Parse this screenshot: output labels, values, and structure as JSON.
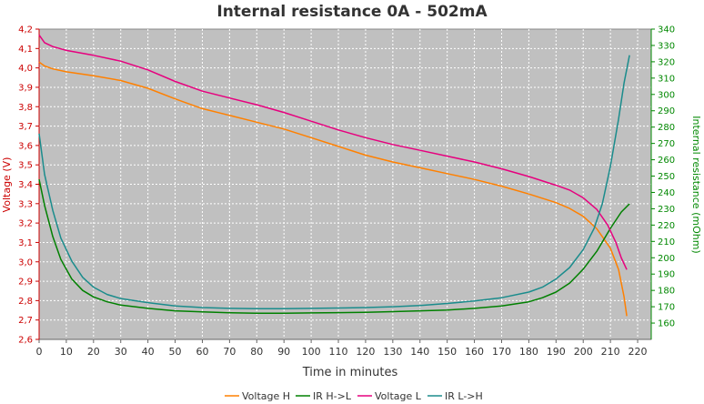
{
  "chart_data": {
    "type": "line",
    "title": "Internal resistance  0A - 502mA",
    "xlabel": "Time in minutes",
    "ylabel_left": "Voltage (V)",
    "ylabel_right": "Internal resistance (mOhm)",
    "xlim": [
      0,
      225
    ],
    "ylim_left": [
      2.6,
      4.2
    ],
    "ylim_right": [
      150,
      340
    ],
    "grid": true,
    "legend_position": "bottom",
    "x_ticks": [
      "0",
      "10",
      "20",
      "30",
      "40",
      "50",
      "60",
      "70",
      "80",
      "90",
      "100",
      "110",
      "120",
      "130",
      "140",
      "150",
      "160",
      "170",
      "180",
      "190",
      "200",
      "210",
      "220"
    ],
    "y_left_ticks": [
      "2,6",
      "2,7",
      "2,8",
      "2,9",
      "3,0",
      "3,1",
      "3,2",
      "3,3",
      "3,4",
      "3,5",
      "3,6",
      "3,7",
      "3,8",
      "3,9",
      "4,0",
      "4,1",
      "4,2"
    ],
    "y_right_ticks": [
      "160",
      "170",
      "180",
      "190",
      "200",
      "210",
      "220",
      "230",
      "240",
      "250",
      "260",
      "270",
      "280",
      "290",
      "300",
      "310",
      "320",
      "330",
      "340"
    ],
    "series": [
      {
        "name": "Voltage H",
        "axis": "left",
        "color": "#ff8000",
        "points": [
          [
            0,
            4.03
          ],
          [
            2,
            4.01
          ],
          [
            5,
            3.995
          ],
          [
            10,
            3.98
          ],
          [
            20,
            3.96
          ],
          [
            30,
            3.935
          ],
          [
            40,
            3.895
          ],
          [
            50,
            3.84
          ],
          [
            60,
            3.79
          ],
          [
            70,
            3.755
          ],
          [
            80,
            3.72
          ],
          [
            90,
            3.685
          ],
          [
            100,
            3.64
          ],
          [
            110,
            3.595
          ],
          [
            120,
            3.55
          ],
          [
            130,
            3.515
          ],
          [
            140,
            3.485
          ],
          [
            150,
            3.455
          ],
          [
            160,
            3.425
          ],
          [
            170,
            3.39
          ],
          [
            180,
            3.35
          ],
          [
            190,
            3.305
          ],
          [
            195,
            3.275
          ],
          [
            200,
            3.235
          ],
          [
            205,
            3.17
          ],
          [
            210,
            3.07
          ],
          [
            213,
            2.96
          ],
          [
            215,
            2.82
          ],
          [
            216,
            2.72
          ]
        ]
      },
      {
        "name": "IR H->L",
        "axis": "right",
        "color": "#008000",
        "points": [
          [
            0,
            248
          ],
          [
            2,
            232
          ],
          [
            5,
            213
          ],
          [
            8,
            199
          ],
          [
            12,
            187
          ],
          [
            16,
            180
          ],
          [
            20,
            176
          ],
          [
            25,
            173
          ],
          [
            30,
            171
          ],
          [
            40,
            169
          ],
          [
            50,
            167.5
          ],
          [
            60,
            166.8
          ],
          [
            70,
            166.3
          ],
          [
            80,
            166
          ],
          [
            90,
            166
          ],
          [
            100,
            166.2
          ],
          [
            110,
            166.4
          ],
          [
            120,
            166.6
          ],
          [
            130,
            167
          ],
          [
            140,
            167.5
          ],
          [
            150,
            168
          ],
          [
            160,
            169
          ],
          [
            170,
            170.5
          ],
          [
            180,
            173
          ],
          [
            185,
            175.5
          ],
          [
            190,
            179
          ],
          [
            195,
            184.5
          ],
          [
            200,
            193
          ],
          [
            205,
            204
          ],
          [
            210,
            218
          ],
          [
            214,
            228
          ],
          [
            217,
            233
          ]
        ]
      },
      {
        "name": "Voltage L",
        "axis": "left",
        "color": "#e6007e",
        "points": [
          [
            0,
            4.17
          ],
          [
            2,
            4.13
          ],
          [
            5,
            4.11
          ],
          [
            10,
            4.09
          ],
          [
            20,
            4.065
          ],
          [
            30,
            4.035
          ],
          [
            40,
            3.99
          ],
          [
            50,
            3.93
          ],
          [
            60,
            3.88
          ],
          [
            70,
            3.845
          ],
          [
            80,
            3.81
          ],
          [
            90,
            3.77
          ],
          [
            100,
            3.725
          ],
          [
            110,
            3.68
          ],
          [
            120,
            3.64
          ],
          [
            130,
            3.605
          ],
          [
            140,
            3.575
          ],
          [
            150,
            3.545
          ],
          [
            160,
            3.515
          ],
          [
            170,
            3.48
          ],
          [
            180,
            3.44
          ],
          [
            190,
            3.395
          ],
          [
            195,
            3.37
          ],
          [
            200,
            3.33
          ],
          [
            205,
            3.27
          ],
          [
            209,
            3.19
          ],
          [
            212,
            3.1
          ],
          [
            214,
            3.02
          ],
          [
            216,
            2.96
          ]
        ]
      },
      {
        "name": "IR L->H",
        "axis": "right",
        "color": "#1a8c8c",
        "points": [
          [
            0,
            276
          ],
          [
            2,
            251
          ],
          [
            5,
            229
          ],
          [
            8,
            212
          ],
          [
            12,
            198
          ],
          [
            16,
            188
          ],
          [
            20,
            182
          ],
          [
            25,
            177.5
          ],
          [
            30,
            175
          ],
          [
            40,
            172.5
          ],
          [
            50,
            170.5
          ],
          [
            60,
            169.5
          ],
          [
            70,
            169
          ],
          [
            80,
            168.8
          ],
          [
            90,
            168.8
          ],
          [
            100,
            169
          ],
          [
            110,
            169.2
          ],
          [
            120,
            169.5
          ],
          [
            130,
            170
          ],
          [
            140,
            170.8
          ],
          [
            150,
            172
          ],
          [
            160,
            173.5
          ],
          [
            170,
            175.5
          ],
          [
            180,
            179
          ],
          [
            185,
            182
          ],
          [
            190,
            187
          ],
          [
            195,
            194
          ],
          [
            200,
            205
          ],
          [
            204,
            218
          ],
          [
            207,
            233
          ],
          [
            210,
            256
          ],
          [
            213,
            285
          ],
          [
            215,
            307
          ],
          [
            217,
            324
          ]
        ]
      }
    ]
  }
}
